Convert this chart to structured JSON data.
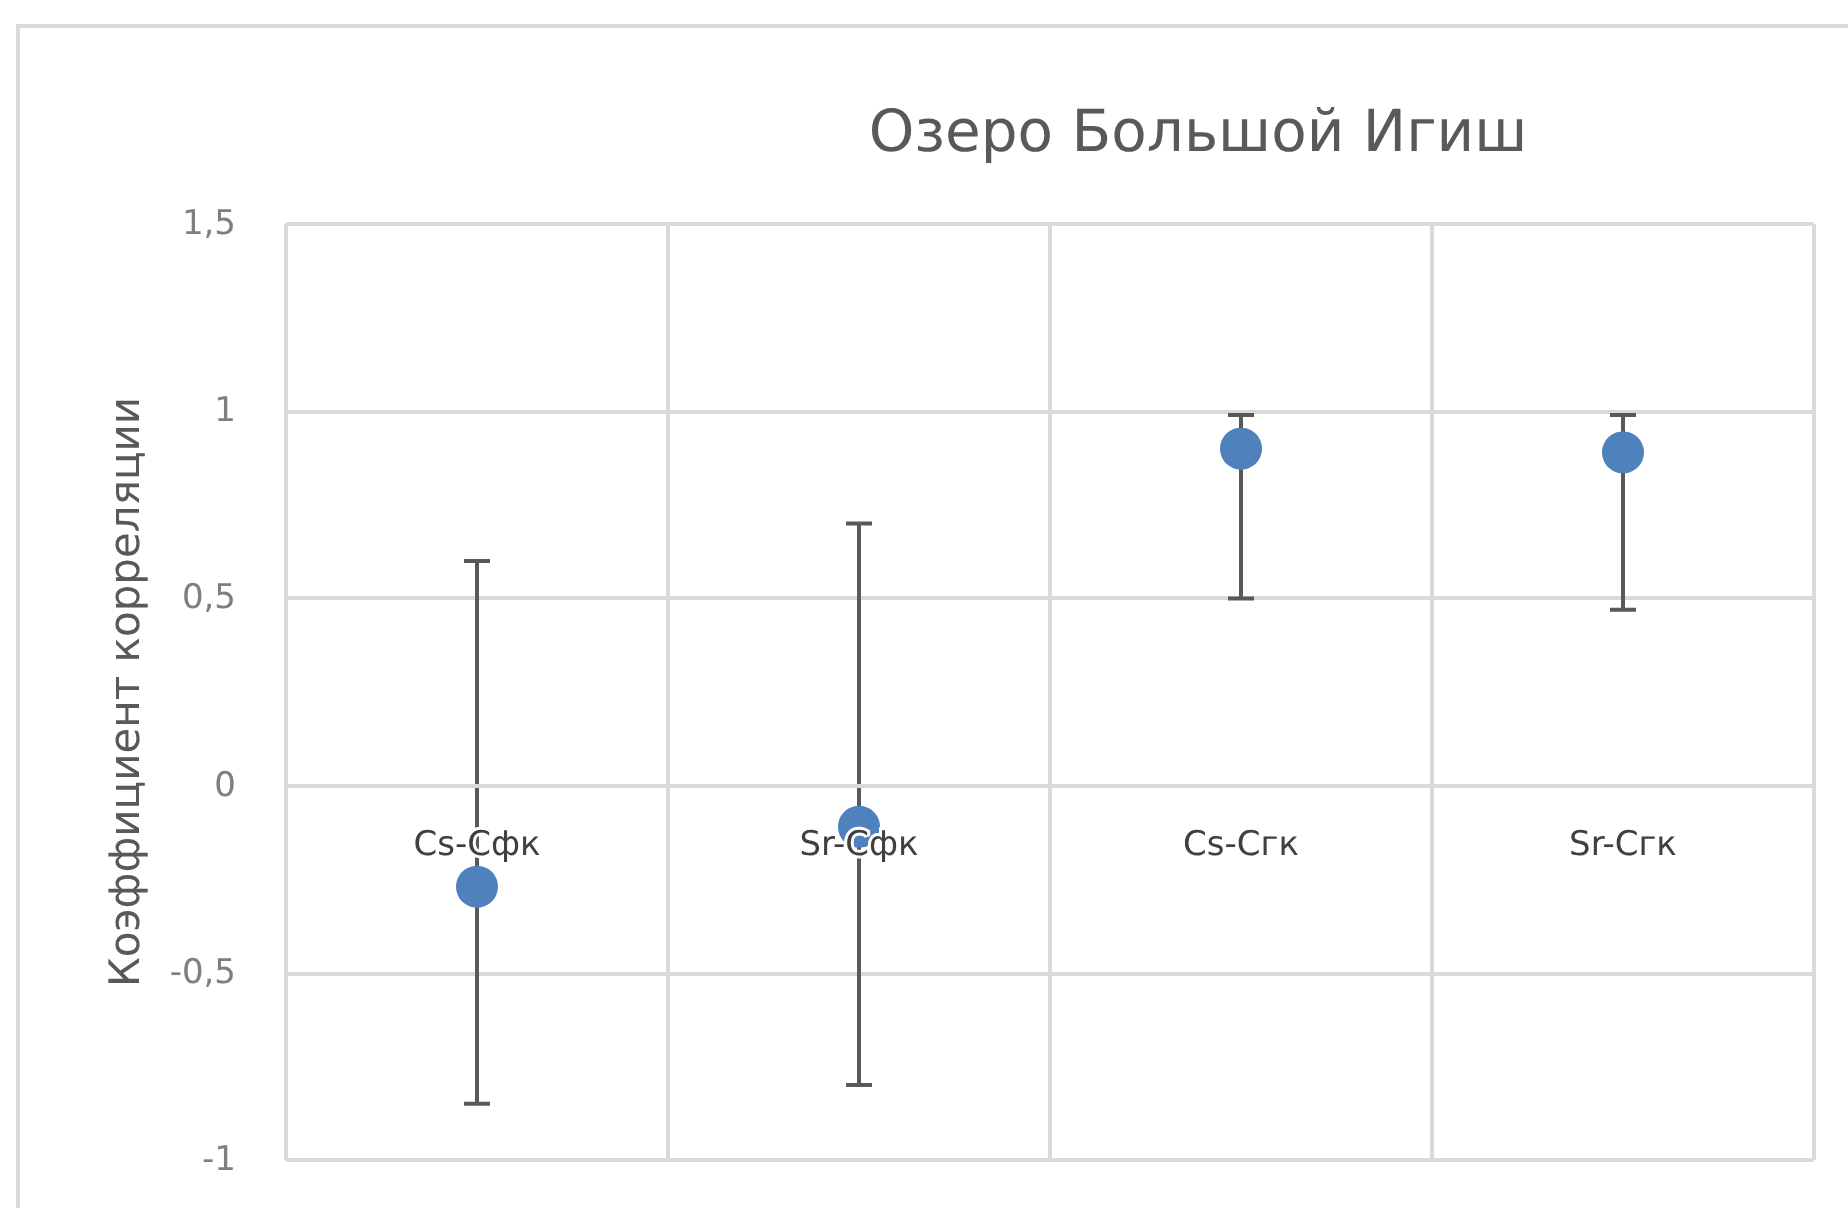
{
  "chart_data": {
    "type": "scatter",
    "title": "Озеро Большой Игиш",
    "ylabel": "Коэффициент корреляции",
    "categories": [
      "Cs-Сфк",
      "Sr-Сфк",
      "Cs-Сгк",
      "Sr-Сгк"
    ],
    "values": [
      -0.27,
      -0.11,
      0.9,
      0.89
    ],
    "errors": [
      [
        -0.85,
        0.6
      ],
      [
        -0.8,
        0.7
      ],
      [
        0.5,
        0.99
      ],
      [
        0.47,
        0.99
      ]
    ],
    "color": "#4f81bd",
    "marker": "circle",
    "grid": true,
    "ylim": [
      -1,
      1.5
    ],
    "yticks": [
      -1,
      {
        "value": -0.5,
        "label": "-0,5"
      },
      0,
      {
        "value": 0.5,
        "label": "0,5"
      },
      1,
      {
        "value": 1.5,
        "label": "1,5"
      }
    ]
  }
}
